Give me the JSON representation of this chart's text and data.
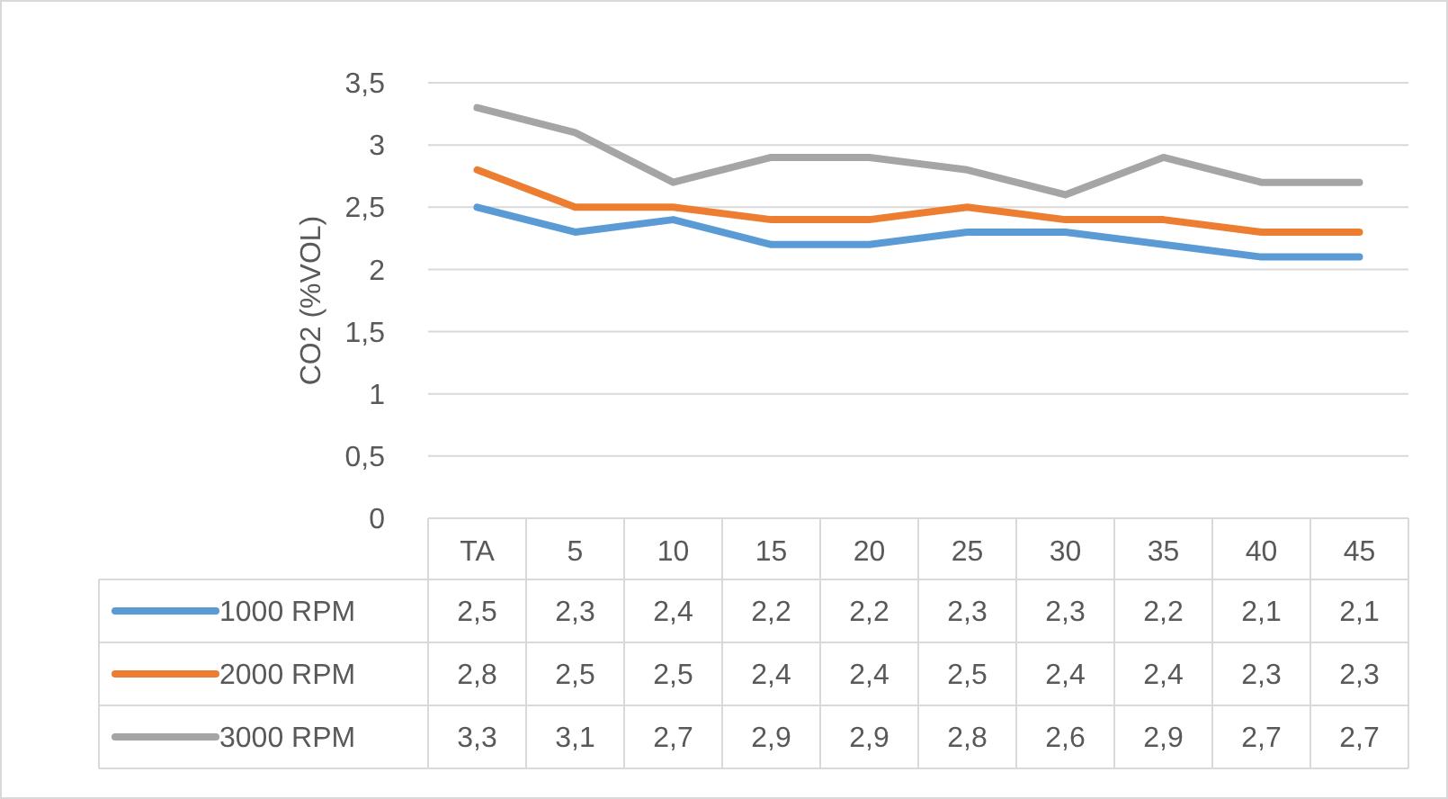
{
  "chart_data": {
    "type": "line",
    "ylabel": "CO2 (%VOL)",
    "categories": [
      "TA",
      "5",
      "10",
      "15",
      "20",
      "25",
      "30",
      "35",
      "40",
      "45"
    ],
    "series": [
      {
        "name": "1000 RPM",
        "color": "#5b9bd5",
        "values": [
          2.5,
          2.3,
          2.4,
          2.2,
          2.2,
          2.3,
          2.3,
          2.2,
          2.1,
          2.1
        ],
        "value_labels": [
          "2,5",
          "2,3",
          "2,4",
          "2,2",
          "2,2",
          "2,3",
          "2,3",
          "2,2",
          "2,1",
          "2,1"
        ]
      },
      {
        "name": "2000 RPM",
        "color": "#ed7d31",
        "values": [
          2.8,
          2.5,
          2.5,
          2.4,
          2.4,
          2.5,
          2.4,
          2.4,
          2.3,
          2.3
        ],
        "value_labels": [
          "2,8",
          "2,5",
          "2,5",
          "2,4",
          "2,4",
          "2,5",
          "2,4",
          "2,4",
          "2,3",
          "2,3"
        ]
      },
      {
        "name": "3000 RPM",
        "color": "#a5a5a5",
        "values": [
          3.3,
          3.1,
          2.7,
          2.9,
          2.9,
          2.8,
          2.6,
          2.9,
          2.7,
          2.7
        ],
        "value_labels": [
          "3,3",
          "3,1",
          "2,7",
          "2,9",
          "2,9",
          "2,8",
          "2,6",
          "2,9",
          "2,7",
          "2,7"
        ]
      }
    ],
    "ylim": [
      0,
      3.5
    ],
    "yticks": [
      0,
      {
        "value": 0.5,
        "label": "0,5"
      },
      1,
      {
        "value": 1.5,
        "label": "1,5"
      },
      2,
      {
        "value": 2.5,
        "label": "2,5"
      },
      3,
      {
        "value": 3.5,
        "label": "3,5"
      }
    ],
    "grid": "y",
    "legend": "bottom",
    "marker": "none",
    "line_style": "solid"
  }
}
